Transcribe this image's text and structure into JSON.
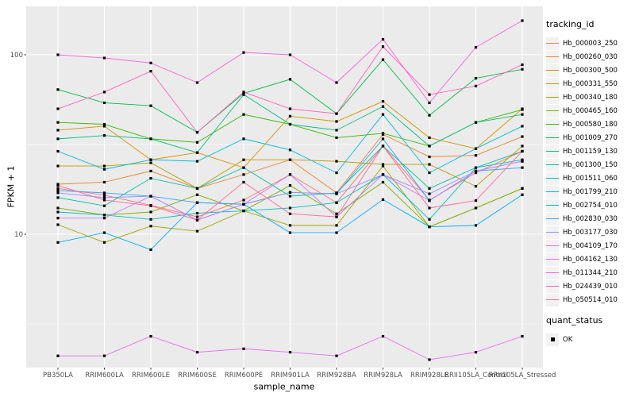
{
  "chart_data": {
    "type": "line",
    "title": "",
    "xlabel": "sample_name",
    "ylabel": "FPKM + 1",
    "y_scale": "log10",
    "ylim": [
      1.8,
      186
    ],
    "yticks": [
      {
        "value": 10,
        "label": "10"
      },
      {
        "value": 100,
        "label": "100"
      }
    ],
    "y_minor_gridlines": [
      3.162,
      31.62
    ],
    "grid": "on",
    "legend_position": "right",
    "point_marker": "black-square",
    "categories": [
      "PB350LA",
      "RRIM600LA",
      "RRIM600LE",
      "RRIM600SE",
      "RRIM600PE",
      "RRIM901LA",
      "RRIM928BA",
      "RRIM928LA",
      "RRIM928LE",
      "RRII105LA_Control",
      "RRII105LA_Stressed"
    ],
    "series": [
      {
        "name": "Hb_000003_250",
        "color": "#F8766D",
        "values": [
          18,
          16.5,
          14.5,
          12.5,
          15.5,
          21.5,
          15,
          31,
          15.5,
          22,
          29
        ]
      },
      {
        "name": "Hb_000260_030",
        "color": "#EA8331",
        "values": [
          19,
          19.5,
          22.5,
          18,
          21.5,
          26,
          17,
          36,
          27,
          27.5,
          35
        ]
      },
      {
        "name": "Hb_000300_500",
        "color": "#D89000",
        "values": [
          38,
          40,
          26,
          28.5,
          23.5,
          45.5,
          42.5,
          55,
          34.5,
          30,
          50
        ]
      },
      {
        "name": "Hb_000331_550",
        "color": "#C09B00",
        "values": [
          24,
          24,
          25,
          18,
          26,
          26,
          25.5,
          24.5,
          24.5,
          18.5,
          31
        ]
      },
      {
        "name": "Hb_000340_180",
        "color": "#A3A500",
        "values": [
          11.3,
          9,
          11.1,
          10.4,
          13.5,
          11.2,
          11.2,
          24,
          11,
          14,
          18
        ]
      },
      {
        "name": "Hb_000465_160",
        "color": "#7CAE00",
        "values": [
          14,
          12.8,
          13.3,
          16.6,
          13.5,
          18.7,
          13,
          19.5,
          11,
          14,
          18
        ]
      },
      {
        "name": "Hb_000580_180",
        "color": "#39B600",
        "values": [
          42,
          41,
          34,
          32.5,
          46.5,
          41,
          34.5,
          36.5,
          31,
          42,
          49.5
        ]
      },
      {
        "name": "Hb_001009_270",
        "color": "#00BB4E",
        "values": [
          64,
          54,
          52,
          37,
          61,
          73,
          47,
          94,
          46,
          74,
          83
        ]
      },
      {
        "name": "Hb_001159_130",
        "color": "#00BF7D",
        "values": [
          34,
          35.5,
          34,
          28.5,
          60,
          41,
          38,
          51.5,
          31,
          42,
          46.5
        ]
      },
      {
        "name": "Hb_001300_150",
        "color": "#00C1A3",
        "values": [
          16,
          14.4,
          20.5,
          18,
          23.5,
          16.3,
          17,
          31,
          18,
          23.5,
          29
        ]
      },
      {
        "name": "Hb_001511_060",
        "color": "#00BFC4",
        "values": [
          13.3,
          12.8,
          12.1,
          13.1,
          13.5,
          14,
          15,
          21.5,
          12.1,
          23.5,
          26
        ]
      },
      {
        "name": "Hb_001799_210",
        "color": "#00BAE0",
        "values": [
          29,
          23,
          26,
          25.5,
          34,
          29.5,
          22,
          46.5,
          22,
          30,
          40
        ]
      },
      {
        "name": "Hb_002754_010",
        "color": "#00B0F6",
        "values": [
          9,
          10.2,
          8.2,
          15,
          14.7,
          10.2,
          10.2,
          15.6,
          11,
          11.2,
          16.6
        ]
      },
      {
        "name": "Hb_002830_030",
        "color": "#35A2FF",
        "values": [
          17.5,
          17,
          16.3,
          15,
          14.7,
          17.1,
          16.8,
          34,
          15.4,
          22.5,
          23.5
        ]
      },
      {
        "name": "Hb_003177_030",
        "color": "#9590FF",
        "values": [
          17,
          16,
          16.3,
          12,
          14.7,
          17.1,
          16.8,
          21.5,
          16.8,
          22.5,
          25.5
        ]
      },
      {
        "name": "Hb_004109_170",
        "color": "#C77CFF",
        "values": [
          12.3,
          12.3,
          16.3,
          12,
          14.7,
          21.5,
          12.5,
          21.5,
          15.4,
          22.5,
          25.5
        ]
      },
      {
        "name": "Hb_004162_130",
        "color": "#E76BF3",
        "values": [
          2.1,
          2.1,
          2.7,
          2.2,
          2.3,
          2.2,
          2.1,
          2.7,
          2,
          2.2,
          2.7
        ]
      },
      {
        "name": "Hb_011344_210",
        "color": "#FA62DB",
        "values": [
          100,
          96,
          90,
          70,
          103,
          100,
          70,
          122,
          54,
          110,
          155
        ]
      },
      {
        "name": "Hb_024439_010",
        "color": "#FF62BC",
        "values": [
          50,
          62,
          81,
          37,
          62,
          50,
          47,
          111,
          60,
          67,
          88
        ]
      },
      {
        "name": "Hb_050514_010",
        "color": "#FF6A98",
        "values": [
          18.7,
          15.5,
          14.4,
          12,
          19.5,
          13,
          12.5,
          31,
          14,
          15.4,
          29
        ]
      }
    ]
  },
  "legend": {
    "color_legend_title": "tracking_id",
    "shape_legend_title": "quant_status",
    "shape_legend_items": [
      {
        "label": "OK",
        "marker": "black-square"
      }
    ]
  },
  "colors": {
    "panel_bg": "#EBEBEB",
    "grid": "#FFFFFF",
    "tick_text": "#4D4D4D",
    "tick_mark": "#333333",
    "point": "#000000",
    "legend_key_bg": "#F2F2F2"
  }
}
